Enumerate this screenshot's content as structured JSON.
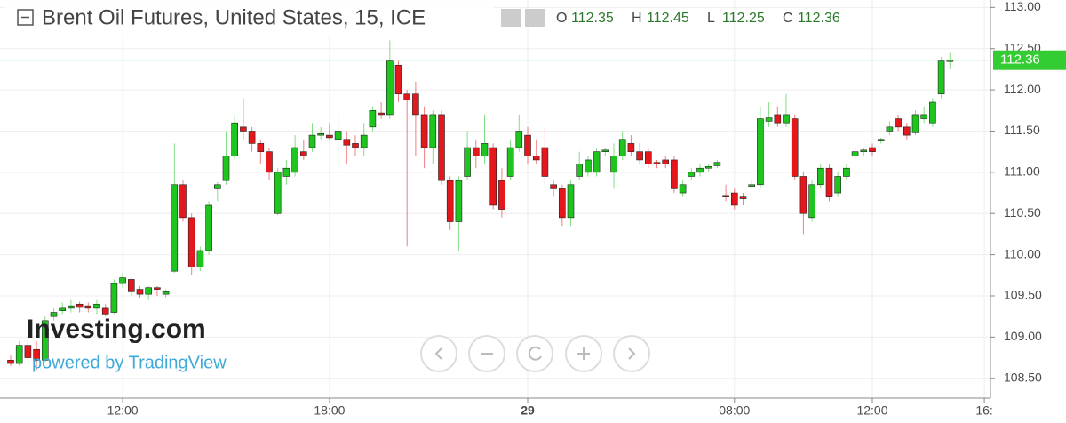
{
  "chart_data": {
    "type": "candlestick",
    "title": "Brent Oil Futures, United States, 15, ICE",
    "ohlc_header": [
      {
        "label": "O",
        "value": 112.35
      },
      {
        "label": "H",
        "value": 112.45
      },
      {
        "label": "L",
        "value": 112.25
      },
      {
        "label": "C",
        "value": 112.36
      }
    ],
    "last_price": 112.36,
    "watermark": "Investing.com",
    "watermark_sub": "powered by TradingView",
    "up_color": "#1ec51e",
    "down_color": "#e3171c",
    "last_price_color": "#33cc33",
    "open": [
      108.72,
      108.68,
      108.9,
      108.85,
      108.72,
      109.25,
      109.32,
      109.35,
      109.4,
      109.38,
      109.35,
      109.35,
      109.3,
      109.65,
      109.7,
      109.58,
      109.52,
      109.6,
      109.52,
      109.8,
      110.85,
      110.45,
      109.85,
      110.05,
      110.8,
      110.9,
      111.2,
      111.55,
      111.5,
      111.35,
      111.25,
      110.5,
      110.95,
      111.0,
      111.25,
      111.3,
      111.45,
      111.45,
      111.4,
      111.4,
      111.35,
      111.3,
      111.55,
      111.72,
      111.7,
      112.3,
      111.95,
      111.95,
      111.7,
      111.3,
      111.7,
      110.9,
      110.4,
      110.95,
      111.3,
      111.2,
      111.3,
      110.9,
      110.95,
      111.3,
      111.45,
      111.2,
      111.3,
      110.85,
      110.8,
      110.45,
      110.95,
      111.0,
      111.0,
      111.25,
      111.0,
      111.2,
      111.35,
      111.25,
      111.25,
      111.12,
      111.15,
      111.15,
      110.75,
      110.95,
      111.0,
      111.05,
      111.08,
      110.72,
      110.75,
      110.7,
      110.83,
      110.85,
      111.62,
      111.7,
      111.6,
      111.65,
      110.95,
      110.45,
      110.85,
      111.05,
      110.75,
      110.95,
      111.2,
      111.25,
      111.3,
      111.38,
      111.5,
      111.65,
      111.55,
      111.48,
      111.65,
      111.6,
      111.95,
      112.35
    ],
    "high": [
      108.78,
      108.95,
      109.0,
      108.95,
      109.25,
      109.35,
      109.42,
      109.45,
      109.43,
      109.42,
      109.45,
      109.4,
      109.7,
      109.78,
      109.72,
      109.62,
      109.62,
      109.62,
      109.58,
      111.35,
      110.9,
      110.5,
      110.1,
      110.65,
      110.88,
      111.5,
      111.7,
      111.9,
      111.55,
      111.4,
      111.3,
      111.05,
      111.15,
      111.45,
      111.4,
      111.6,
      111.55,
      111.6,
      111.7,
      111.5,
      111.45,
      111.6,
      111.8,
      111.85,
      112.6,
      112.35,
      112.0,
      112.1,
      111.8,
      111.75,
      111.75,
      110.95,
      110.95,
      111.5,
      111.4,
      111.7,
      111.35,
      111.05,
      111.4,
      111.7,
      111.55,
      111.4,
      111.55,
      110.9,
      110.85,
      110.9,
      111.25,
      111.2,
      111.3,
      111.3,
      111.35,
      111.5,
      111.45,
      111.35,
      111.3,
      111.15,
      111.2,
      111.2,
      110.9,
      111.05,
      111.1,
      111.1,
      111.15,
      110.85,
      110.8,
      110.75,
      110.9,
      111.8,
      111.85,
      111.8,
      111.95,
      111.7,
      111.0,
      110.9,
      111.1,
      111.1,
      111.0,
      111.1,
      111.3,
      111.3,
      111.35,
      111.42,
      111.62,
      111.7,
      111.6,
      111.75,
      111.8,
      111.9,
      112.4,
      112.45
    ],
    "low": [
      108.65,
      108.65,
      108.7,
      108.6,
      108.7,
      109.2,
      109.28,
      109.3,
      109.3,
      109.3,
      109.28,
      109.25,
      109.28,
      109.6,
      109.5,
      109.48,
      109.45,
      109.5,
      109.48,
      109.78,
      110.4,
      109.75,
      109.8,
      110.0,
      110.65,
      110.85,
      111.15,
      111.4,
      111.25,
      111.1,
      110.9,
      110.48,
      110.85,
      110.95,
      111.15,
      111.25,
      111.4,
      111.4,
      111.0,
      111.1,
      111.2,
      111.2,
      111.5,
      111.65,
      111.65,
      111.85,
      110.1,
      111.2,
      111.05,
      111.1,
      110.85,
      110.3,
      110.05,
      110.9,
      111.05,
      111.1,
      110.55,
      110.45,
      110.9,
      111.25,
      111.1,
      111.1,
      110.85,
      110.7,
      110.35,
      110.35,
      110.9,
      110.95,
      110.95,
      111.2,
      110.8,
      111.15,
      111.2,
      111.1,
      111.05,
      111.05,
      111.05,
      110.75,
      110.7,
      110.9,
      110.95,
      111.0,
      111.05,
      110.65,
      110.55,
      110.6,
      110.8,
      110.8,
      111.55,
      111.55,
      111.55,
      110.9,
      110.25,
      110.4,
      110.8,
      110.65,
      110.7,
      110.9,
      111.15,
      111.2,
      111.2,
      111.35,
      111.45,
      111.5,
      111.4,
      111.45,
      111.6,
      111.55,
      111.9,
      112.25
    ],
    "close": [
      108.68,
      108.9,
      108.75,
      108.72,
      109.2,
      109.3,
      109.35,
      109.38,
      109.36,
      109.35,
      109.4,
      109.28,
      109.65,
      109.72,
      109.55,
      109.52,
      109.6,
      109.58,
      109.55,
      110.85,
      110.45,
      109.85,
      110.05,
      110.6,
      110.85,
      111.2,
      111.6,
      111.5,
      111.35,
      111.25,
      111.0,
      111.0,
      111.05,
      111.3,
      111.2,
      111.45,
      111.47,
      111.42,
      111.5,
      111.33,
      111.3,
      111.45,
      111.75,
      111.7,
      112.35,
      111.95,
      111.88,
      111.7,
      111.3,
      111.7,
      110.9,
      110.4,
      110.9,
      111.3,
      111.2,
      111.35,
      110.6,
      110.55,
      111.3,
      111.5,
      111.2,
      111.15,
      110.95,
      110.8,
      110.45,
      110.85,
      111.1,
      111.15,
      111.25,
      111.27,
      111.2,
      111.4,
      111.25,
      111.15,
      111.1,
      111.1,
      111.1,
      110.8,
      110.85,
      111.0,
      111.05,
      111.07,
      111.12,
      110.7,
      110.6,
      110.68,
      110.85,
      111.65,
      111.66,
      111.6,
      111.7,
      110.95,
      110.5,
      110.85,
      111.05,
      110.7,
      110.95,
      111.05,
      111.25,
      111.27,
      111.25,
      111.4,
      111.55,
      111.55,
      111.45,
      111.7,
      111.7,
      111.85,
      112.35,
      112.36
    ],
    "ylim": [
      108.26,
      113.09
    ],
    "yticks": [
      {
        "value": 108.5,
        "label": "108.50"
      },
      {
        "value": 109,
        "label": "109.00"
      },
      {
        "value": 109.5,
        "label": "109.50"
      },
      {
        "value": 110,
        "label": "110.00"
      },
      {
        "value": 110.5,
        "label": "110.50"
      },
      {
        "value": 111,
        "label": "111.00"
      },
      {
        "value": 111.5,
        "label": "111.50"
      },
      {
        "value": 112,
        "label": "112.00"
      },
      {
        "value": 112.5,
        "label": "112.50"
      },
      {
        "value": 113,
        "label": "113.00"
      }
    ],
    "xticks": [
      {
        "value": 13,
        "label": "12:00"
      },
      {
        "value": 37,
        "label": "18:00"
      },
      {
        "value": 60,
        "label": "29"
      },
      {
        "value": 84,
        "label": "08:00"
      },
      {
        "value": 100,
        "label": "12:00"
      },
      {
        "value": 113,
        "label": "16:"
      }
    ]
  }
}
